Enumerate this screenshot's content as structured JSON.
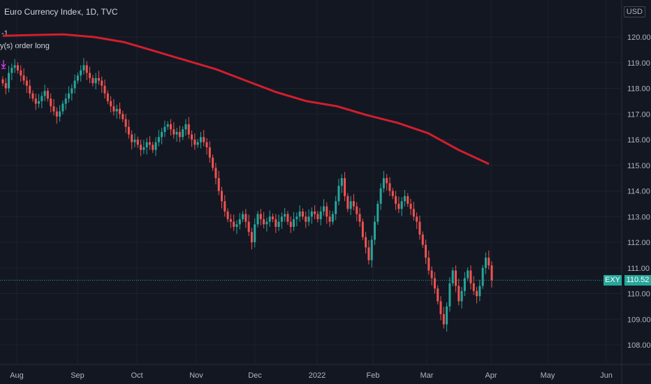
{
  "header": {
    "title": "Euro Currency Index, 1D, TVC",
    "indicator_value": "-1",
    "indicator_label": "y(s) order long",
    "currency": "USD"
  },
  "colors": {
    "up": "#26a69a",
    "down": "#ef5350",
    "ma": "#d11f2c",
    "price_line": "#26a69a",
    "grid": "#1e222d",
    "background": "#131722"
  },
  "last_price": {
    "symbol": "EXY",
    "value": "110.52"
  },
  "chart_data": {
    "type": "candlestick",
    "title": "Euro Currency Index, 1D, TVC",
    "y_ticks": [
      "120.00",
      "119.00",
      "118.00",
      "117.00",
      "116.00",
      "115.00",
      "114.00",
      "113.00",
      "112.00",
      "111.00",
      "110.00",
      "109.00",
      "108.00"
    ],
    "x_ticks": [
      "Aug",
      "Sep",
      "Oct",
      "Nov",
      "Dec",
      "2022",
      "Feb",
      "Mar",
      "Apr",
      "May",
      "Jun"
    ],
    "ylim": [
      107.5,
      120.8
    ],
    "grid": true,
    "last_price": 110.52,
    "candles_close": [
      118.2,
      118.0,
      118.6,
      118.8,
      118.9,
      118.7,
      118.5,
      118.3,
      118.1,
      117.8,
      117.6,
      117.4,
      117.5,
      117.7,
      117.9,
      117.6,
      117.3,
      117.1,
      116.9,
      117.1,
      117.4,
      117.6,
      117.8,
      118.0,
      118.3,
      118.5,
      118.7,
      118.9,
      118.6,
      118.4,
      118.2,
      118.4,
      118.3,
      118.1,
      117.8,
      117.5,
      117.3,
      117.1,
      117.2,
      117.0,
      116.8,
      116.5,
      116.2,
      115.9,
      116.0,
      115.8,
      115.6,
      115.7,
      115.9,
      115.8,
      115.6,
      115.9,
      116.1,
      116.3,
      116.5,
      116.6,
      116.4,
      116.2,
      116.3,
      116.1,
      116.4,
      116.6,
      116.2,
      116.0,
      115.8,
      115.9,
      116.1,
      115.9,
      115.7,
      115.3,
      114.9,
      114.5,
      114.0,
      113.6,
      113.2,
      112.9,
      112.8,
      112.6,
      112.7,
      112.9,
      113.1,
      112.8,
      112.4,
      112.0,
      112.7,
      113.1,
      112.9,
      112.7,
      112.8,
      113.0,
      112.9,
      112.6,
      112.8,
      113.0,
      113.1,
      112.8,
      112.6,
      112.9,
      113.0,
      113.2,
      113.0,
      112.8,
      113.0,
      113.2,
      113.1,
      112.9,
      113.2,
      113.4,
      113.0,
      112.8,
      113.1,
      113.6,
      114.2,
      114.5,
      113.8,
      113.3,
      113.6,
      113.4,
      113.1,
      112.8,
      112.2,
      111.8,
      111.3,
      112.1,
      112.8,
      113.5,
      114.1,
      114.5,
      114.3,
      114.0,
      113.8,
      113.5,
      113.3,
      113.6,
      113.8,
      113.5,
      113.3,
      113.0,
      112.8,
      112.3,
      111.9,
      111.4,
      110.9,
      110.6,
      110.2,
      109.7,
      109.2,
      108.8,
      109.5,
      110.4,
      110.9,
      110.3,
      109.7,
      110.1,
      110.6,
      110.9,
      110.4,
      110.1,
      109.9,
      110.3,
      111.0,
      111.4,
      111.1,
      110.52
    ],
    "series": [
      {
        "name": "",
        "points": [
          [
            "Jul 30",
            120.05
          ],
          [
            "Aug 15",
            120.08
          ],
          [
            "Sep 1",
            120.1
          ],
          [
            "Sep 15",
            120.0
          ],
          [
            "Oct 1",
            119.8
          ],
          [
            "Oct 15",
            119.45
          ],
          [
            "Nov 1",
            119.1
          ],
          [
            "Nov 15",
            118.75
          ],
          [
            "Dec 1",
            118.3
          ],
          [
            "Dec 15",
            117.85
          ],
          [
            "Jan 1",
            117.5
          ],
          [
            "Jan 15",
            117.3
          ],
          [
            "Feb 1",
            116.95
          ],
          [
            "Feb 15",
            116.65
          ],
          [
            "Mar 1",
            116.25
          ],
          [
            "Mar 15",
            115.6
          ],
          [
            "Apr 1",
            115.05
          ]
        ]
      }
    ]
  }
}
